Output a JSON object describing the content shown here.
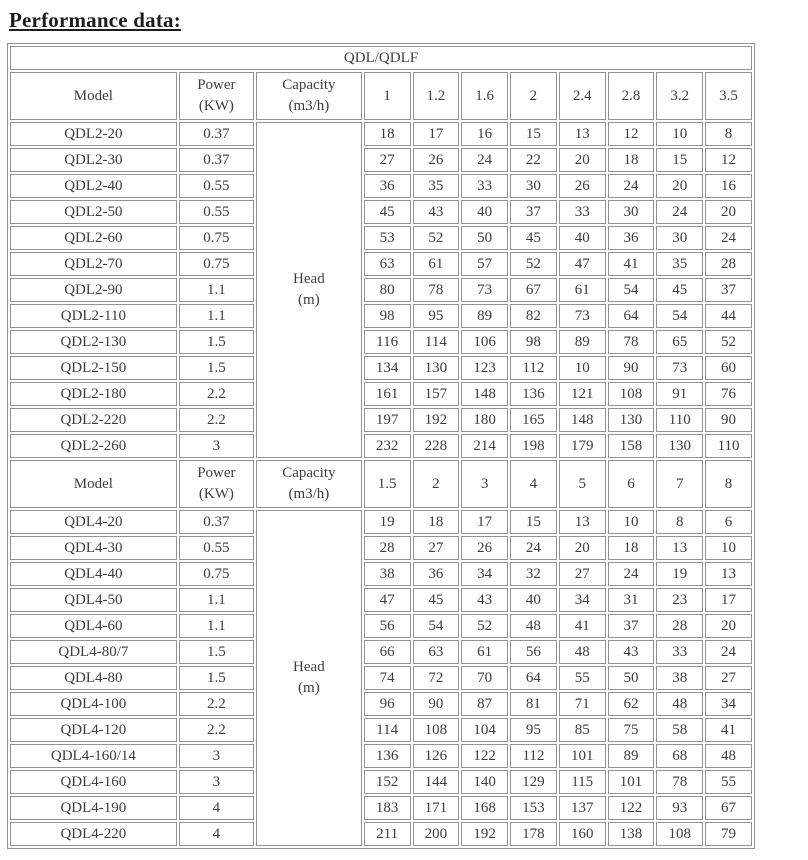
{
  "page": {
    "title": "Performance data:"
  },
  "table": {
    "group_header": "QDL/QDLF",
    "col_headers": {
      "model": "Model",
      "power": [
        "Power",
        "(KW)"
      ],
      "capacity": [
        "Capacity",
        "(m3/h)"
      ]
    },
    "head_unit": [
      "Head",
      "(m)"
    ],
    "sections": [
      {
        "capacity_values": [
          "1",
          "1.2",
          "1.6",
          "2",
          "2.4",
          "2.8",
          "3.2",
          "3.5"
        ],
        "rows": [
          {
            "model": "QDL2-20",
            "power": "0.37",
            "head": [
              "18",
              "17",
              "16",
              "15",
              "13",
              "12",
              "10",
              "8"
            ]
          },
          {
            "model": "QDL2-30",
            "power": "0.37",
            "head": [
              "27",
              "26",
              "24",
              "22",
              "20",
              "18",
              "15",
              "12"
            ]
          },
          {
            "model": "QDL2-40",
            "power": "0.55",
            "head": [
              "36",
              "35",
              "33",
              "30",
              "26",
              "24",
              "20",
              "16"
            ]
          },
          {
            "model": "QDL2-50",
            "power": "0.55",
            "head": [
              "45",
              "43",
              "40",
              "37",
              "33",
              "30",
              "24",
              "20"
            ]
          },
          {
            "model": "QDL2-60",
            "power": "0.75",
            "head": [
              "53",
              "52",
              "50",
              "45",
              "40",
              "36",
              "30",
              "24"
            ]
          },
          {
            "model": "QDL2-70",
            "power": "0.75",
            "head": [
              "63",
              "61",
              "57",
              "52",
              "47",
              "41",
              "35",
              "28"
            ]
          },
          {
            "model": "QDL2-90",
            "power": "1.1",
            "head": [
              "80",
              "78",
              "73",
              "67",
              "61",
              "54",
              "45",
              "37"
            ]
          },
          {
            "model": "QDL2-110",
            "power": "1.1",
            "head": [
              "98",
              "95",
              "89",
              "82",
              "73",
              "64",
              "54",
              "44"
            ]
          },
          {
            "model": "QDL2-130",
            "power": "1.5",
            "head": [
              "116",
              "114",
              "106",
              "98",
              "89",
              "78",
              "65",
              "52"
            ]
          },
          {
            "model": "QDL2-150",
            "power": "1.5",
            "head": [
              "134",
              "130",
              "123",
              "112",
              "10",
              "90",
              "73",
              "60"
            ]
          },
          {
            "model": "QDL2-180",
            "power": "2.2",
            "head": [
              "161",
              "157",
              "148",
              "136",
              "121",
              "108",
              "91",
              "76"
            ]
          },
          {
            "model": "QDL2-220",
            "power": "2.2",
            "head": [
              "197",
              "192",
              "180",
              "165",
              "148",
              "130",
              "110",
              "90"
            ]
          },
          {
            "model": "QDL2-260",
            "power": "3",
            "head": [
              "232",
              "228",
              "214",
              "198",
              "179",
              "158",
              "130",
              "110"
            ]
          }
        ]
      },
      {
        "capacity_values": [
          "1.5",
          "2",
          "3",
          "4",
          "5",
          "6",
          "7",
          "8"
        ],
        "rows": [
          {
            "model": "QDL4-20",
            "power": "0.37",
            "head": [
              "19",
              "18",
              "17",
              "15",
              "13",
              "10",
              "8",
              "6"
            ]
          },
          {
            "model": "QDL4-30",
            "power": "0.55",
            "head": [
              "28",
              "27",
              "26",
              "24",
              "20",
              "18",
              "13",
              "10"
            ]
          },
          {
            "model": "QDL4-40",
            "power": "0.75",
            "head": [
              "38",
              "36",
              "34",
              "32",
              "27",
              "24",
              "19",
              "13"
            ]
          },
          {
            "model": "QDL4-50",
            "power": "1.1",
            "head": [
              "47",
              "45",
              "43",
              "40",
              "34",
              "31",
              "23",
              "17"
            ]
          },
          {
            "model": "QDL4-60",
            "power": "1.1",
            "head": [
              "56",
              "54",
              "52",
              "48",
              "41",
              "37",
              "28",
              "20"
            ]
          },
          {
            "model": "QDL4-80/7",
            "power": "1.5",
            "head": [
              "66",
              "63",
              "61",
              "56",
              "48",
              "43",
              "33",
              "24"
            ]
          },
          {
            "model": "QDL4-80",
            "power": "1.5",
            "head": [
              "74",
              "72",
              "70",
              "64",
              "55",
              "50",
              "38",
              "27"
            ]
          },
          {
            "model": "QDL4-100",
            "power": "2.2",
            "head": [
              "96",
              "90",
              "87",
              "81",
              "71",
              "62",
              "48",
              "34"
            ]
          },
          {
            "model": "QDL4-120",
            "power": "2.2",
            "head": [
              "114",
              "108",
              "104",
              "95",
              "85",
              "75",
              "58",
              "41"
            ]
          },
          {
            "model": "QDL4-160/14",
            "power": "3",
            "head": [
              "136",
              "126",
              "122",
              "112",
              "101",
              "89",
              "68",
              "48"
            ]
          },
          {
            "model": "QDL4-160",
            "power": "3",
            "head": [
              "152",
              "144",
              "140",
              "129",
              "115",
              "101",
              "78",
              "55"
            ]
          },
          {
            "model": "QDL4-190",
            "power": "4",
            "head": [
              "183",
              "171",
              "168",
              "153",
              "137",
              "122",
              "93",
              "67"
            ]
          },
          {
            "model": "QDL4-220",
            "power": "4",
            "head": [
              "211",
              "200",
              "192",
              "178",
              "160",
              "138",
              "108",
              "79"
            ]
          }
        ]
      }
    ]
  }
}
